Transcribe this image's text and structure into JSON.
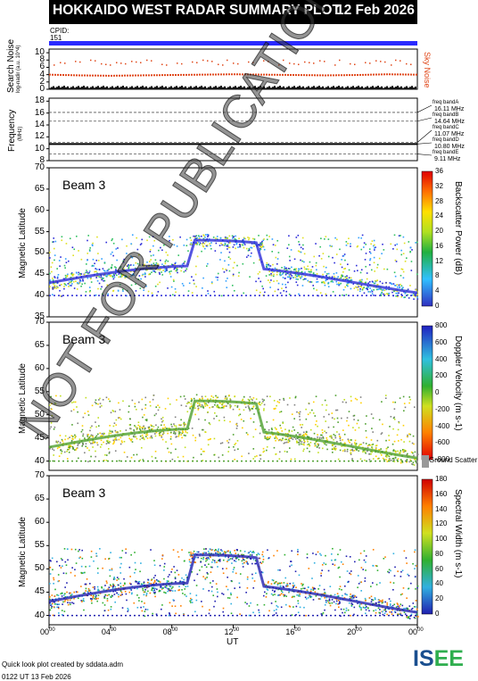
{
  "header": {
    "title": "HOKKAIDO WEST RADAR SUMMARY PLOT",
    "date": "12 Feb 2026"
  },
  "cpid": {
    "label": "CPID:",
    "value": "151"
  },
  "footer": {
    "credit": "Quick look plot created by sddata.adm",
    "timestamp": "0122 UT 13 Feb 2026",
    "logo_main": "IS",
    "logo_accent": "EE"
  },
  "watermark": "NOT FOR PUBLICATION",
  "chart_data": [
    {
      "type": "line",
      "title": "",
      "ylabel": "Search Noise",
      "ylabel_sub": "log-nadir (a.u. 10^4)",
      "legend": "Sky Noise",
      "ylim": [
        0,
        11
      ],
      "yticks": [
        "0",
        "2",
        "4",
        "6",
        "8",
        "10"
      ],
      "series": [
        {
          "name": "Sky Noise",
          "color": "#e0481a",
          "x": [
            0,
            2,
            4,
            6,
            8,
            10,
            12,
            14,
            16,
            18,
            20,
            22,
            24
          ],
          "values": [
            4.0,
            3.8,
            3.7,
            3.8,
            3.9,
            4.0,
            4.1,
            4.0,
            3.9,
            3.8,
            3.9,
            4.1,
            4.0
          ]
        }
      ]
    },
    {
      "type": "line",
      "ylabel": "Frequency",
      "ylabel_sub": "(MHz)",
      "ylim": [
        8,
        18.5
      ],
      "yticks": [
        "8",
        "10",
        "12",
        "14",
        "16",
        "18"
      ],
      "freq_bands": [
        {
          "label": "freq bandA",
          "value": "16.11 MHz"
        },
        {
          "label": "freq bandB",
          "value": "14.64 MHz"
        },
        {
          "label": "freq bandC",
          "value": "11.07 MHz"
        },
        {
          "label": "freq bandD",
          "value": "10.80 MHz"
        },
        {
          "label": "freq bandE",
          "value": "9.11 MHz"
        }
      ],
      "series": [
        {
          "name": "operating frequency",
          "x": [
            0,
            24
          ],
          "values": [
            10.8,
            10.8
          ]
        }
      ]
    },
    {
      "type": "heatmap",
      "beam_label": "Beam 3",
      "ylabel": "Magnetic Latitude",
      "ylim": [
        35,
        70
      ],
      "yticks": [
        "35",
        "40",
        "45",
        "50",
        "55",
        "60",
        "65",
        "70"
      ],
      "colorbar_label": "Backscatter Power (dB)",
      "colorbar_ticks": [
        "0",
        "4",
        "8",
        "12",
        "16",
        "20",
        "24",
        "28",
        "32",
        "36"
      ]
    },
    {
      "type": "heatmap",
      "beam_label": "Beam 3",
      "ylabel": "Magnetic Latitude",
      "ylim": [
        38,
        70
      ],
      "yticks": [
        "40",
        "45",
        "50",
        "55",
        "60",
        "65",
        "70"
      ],
      "colorbar_label": "Doppler Velocity (m s-1)",
      "colorbar_ticks": [
        "800",
        "600",
        "400",
        "200",
        "0",
        "-200",
        "-400",
        "-600",
        "-800"
      ],
      "ground_scatter": "Ground Scatter"
    },
    {
      "type": "heatmap",
      "beam_label": "Beam 3",
      "ylabel": "Magnetic Latitude",
      "ylim": [
        38,
        70
      ],
      "yticks": [
        "40",
        "45",
        "50",
        "55",
        "60",
        "65",
        "70"
      ],
      "colorbar_label": "Spectral Width (m s-1)",
      "colorbar_ticks": [
        "0",
        "20",
        "40",
        "60",
        "80",
        "100",
        "120",
        "140",
        "160",
        "180"
      ]
    }
  ],
  "xaxis": {
    "label": "UT",
    "ticks": [
      {
        "h": "00",
        "m": "00"
      },
      {
        "h": "04",
        "m": "00"
      },
      {
        "h": "08",
        "m": "00"
      },
      {
        "h": "12",
        "m": "00"
      },
      {
        "h": "16",
        "m": "00"
      },
      {
        "h": "20",
        "m": "00"
      },
      {
        "h": "00",
        "m": "00"
      }
    ]
  }
}
